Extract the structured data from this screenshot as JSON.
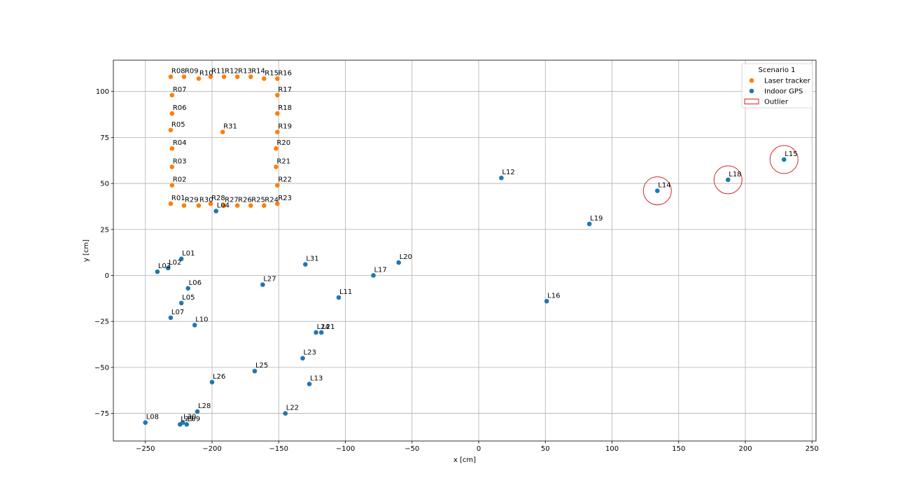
{
  "chart_data": {
    "type": "scatter",
    "xlabel": "x [cm]",
    "ylabel": "y [cm]",
    "xlim": [
      -274,
      253
    ],
    "ylim": [
      -90,
      117
    ],
    "xticks": [
      -250,
      -200,
      -150,
      -100,
      -50,
      0,
      50,
      100,
      150,
      200,
      250
    ],
    "yticks": [
      -75,
      -50,
      -25,
      0,
      25,
      50,
      75,
      100
    ],
    "grid": true,
    "legend": {
      "title": "Scenario 1",
      "placement": "top-right",
      "entries": [
        {
          "label": "Laser tracker",
          "kind": "marker",
          "color": "#ff7f0e"
        },
        {
          "label": "Indoor GPS",
          "kind": "marker",
          "color": "#1f77b4"
        },
        {
          "label": "Outlier",
          "kind": "patch",
          "color": "#d62728"
        }
      ]
    },
    "series": [
      {
        "name": "Laser tracker",
        "color": "#ff7f0e",
        "points": [
          {
            "label": "R01",
            "x": -231,
            "y": 39
          },
          {
            "label": "R02",
            "x": -230,
            "y": 49
          },
          {
            "label": "R03",
            "x": -230,
            "y": 59
          },
          {
            "label": "R04",
            "x": -230,
            "y": 69
          },
          {
            "label": "R05",
            "x": -231,
            "y": 79
          },
          {
            "label": "R06",
            "x": -230,
            "y": 88
          },
          {
            "label": "R07",
            "x": -230,
            "y": 98
          },
          {
            "label": "R08",
            "x": -231,
            "y": 108
          },
          {
            "label": "R09",
            "x": -221,
            "y": 108
          },
          {
            "label": "R10",
            "x": -210,
            "y": 107
          },
          {
            "label": "R11",
            "x": -201,
            "y": 108
          },
          {
            "label": "R12",
            "x": -191,
            "y": 108
          },
          {
            "label": "R13",
            "x": -181,
            "y": 108
          },
          {
            "label": "R14",
            "x": -171,
            "y": 108
          },
          {
            "label": "R15",
            "x": -161,
            "y": 107
          },
          {
            "label": "R16",
            "x": -151,
            "y": 107
          },
          {
            "label": "R17",
            "x": -151,
            "y": 98
          },
          {
            "label": "R18",
            "x": -151,
            "y": 88
          },
          {
            "label": "R19",
            "x": -151,
            "y": 78
          },
          {
            "label": "R20",
            "x": -152,
            "y": 69
          },
          {
            "label": "R21",
            "x": -152,
            "y": 59
          },
          {
            "label": "R22",
            "x": -151,
            "y": 49
          },
          {
            "label": "R23",
            "x": -151,
            "y": 39
          },
          {
            "label": "R24",
            "x": -161,
            "y": 38
          },
          {
            "label": "R25",
            "x": -171,
            "y": 38
          },
          {
            "label": "R26",
            "x": -181,
            "y": 38
          },
          {
            "label": "R27",
            "x": -191,
            "y": 38
          },
          {
            "label": "R28",
            "x": -201,
            "y": 39
          },
          {
            "label": "R29",
            "x": -221,
            "y": 38
          },
          {
            "label": "R30",
            "x": -210,
            "y": 38
          },
          {
            "label": "R31",
            "x": -192,
            "y": 78
          }
        ]
      },
      {
        "name": "Indoor GPS",
        "color": "#1f77b4",
        "points": [
          {
            "label": "L01",
            "x": -223,
            "y": 9
          },
          {
            "label": "L02",
            "x": -233,
            "y": 4
          },
          {
            "label": "L03",
            "x": -241,
            "y": 2
          },
          {
            "label": "L04",
            "x": -197,
            "y": 35
          },
          {
            "label": "L05",
            "x": -223,
            "y": -15
          },
          {
            "label": "L06",
            "x": -218,
            "y": -7
          },
          {
            "label": "L07",
            "x": -231,
            "y": -23
          },
          {
            "label": "L08",
            "x": -250,
            "y": -80
          },
          {
            "label": "L09",
            "x": -219,
            "y": -81
          },
          {
            "label": "L10",
            "x": -213,
            "y": -27
          },
          {
            "label": "L11",
            "x": -105,
            "y": -12
          },
          {
            "label": "L12",
            "x": 17,
            "y": 53
          },
          {
            "label": "L13",
            "x": -127,
            "y": -59
          },
          {
            "label": "L14",
            "x": 134,
            "y": 46
          },
          {
            "label": "L15",
            "x": 229,
            "y": 63
          },
          {
            "label": "L16",
            "x": 51,
            "y": -14
          },
          {
            "label": "L17",
            "x": -79,
            "y": 0
          },
          {
            "label": "L18",
            "x": 187,
            "y": 52
          },
          {
            "label": "L19",
            "x": 83,
            "y": 28
          },
          {
            "label": "L20",
            "x": -60,
            "y": 7
          },
          {
            "label": "L21",
            "x": -118,
            "y": -31
          },
          {
            "label": "L22",
            "x": -145,
            "y": -75
          },
          {
            "label": "L23",
            "x": -132,
            "y": -45
          },
          {
            "label": "L24",
            "x": -122,
            "y": -31
          },
          {
            "label": "L25",
            "x": -168,
            "y": -52
          },
          {
            "label": "L26",
            "x": -200,
            "y": -58
          },
          {
            "label": "L27",
            "x": -162,
            "y": -5
          },
          {
            "label": "L28",
            "x": -211,
            "y": -74
          },
          {
            "label": "L29",
            "x": -224,
            "y": -81
          },
          {
            "label": "L30",
            "x": -222,
            "y": -80
          },
          {
            "label": "L31",
            "x": -130,
            "y": 6
          }
        ]
      }
    ],
    "outliers": [
      "L14",
      "L18",
      "L15"
    ]
  }
}
